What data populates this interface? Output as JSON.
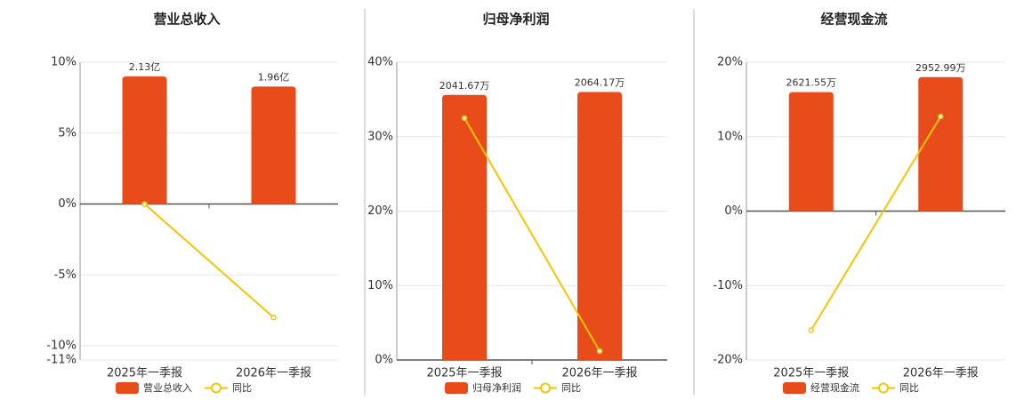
{
  "chart_data": [
    {
      "type": "bar",
      "title": "营业总收入",
      "categories": [
        "2025年一季报",
        "2026年一季报"
      ],
      "series": [
        {
          "name": "营业总收入",
          "type": "bar",
          "color": "#e84c1a",
          "values": [
            2.13,
            1.96
          ],
          "value_labels": [
            "2.13亿",
            "1.96亿"
          ]
        },
        {
          "name": "同比",
          "type": "line",
          "color": "#f5c400",
          "values": [
            0,
            -8
          ]
        }
      ],
      "ylim": [
        -11,
        10
      ],
      "yticks": [
        {
          "value": -11,
          "label": "-11%"
        },
        {
          "value": -10,
          "label": "-10%"
        },
        {
          "value": -5,
          "label": "-5%"
        },
        {
          "value": 0,
          "label": "0%"
        },
        {
          "value": 5,
          "label": "5%"
        },
        {
          "value": 10,
          "label": "10%"
        }
      ],
      "grid": true
    },
    {
      "type": "bar",
      "title": "归母净利润",
      "categories": [
        "2025年一季报",
        "2026年一季报"
      ],
      "series": [
        {
          "name": "归母净利润",
          "type": "bar",
          "color": "#e84c1a",
          "values": [
            2041.67,
            2064.17
          ],
          "value_labels": [
            "2041.67万",
            "2064.17万"
          ]
        },
        {
          "name": "同比",
          "type": "line",
          "color": "#f5c400",
          "values": [
            32.5,
            1.2
          ]
        }
      ],
      "ylim": [
        0,
        40
      ],
      "yticks": [
        {
          "value": 0,
          "label": "0%"
        },
        {
          "value": 10,
          "label": "10%"
        },
        {
          "value": 20,
          "label": "20%"
        },
        {
          "value": 30,
          "label": "30%"
        },
        {
          "value": 40,
          "label": "40%"
        }
      ],
      "grid": true
    },
    {
      "type": "bar",
      "title": "经营现金流",
      "categories": [
        "2025年一季报",
        "2026年一季报"
      ],
      "series": [
        {
          "name": "经营现金流",
          "type": "bar",
          "color": "#e84c1a",
          "values": [
            2621.55,
            2952.99
          ],
          "value_labels": [
            "2621.55万",
            "2952.99万"
          ]
        },
        {
          "name": "同比",
          "type": "line",
          "color": "#f5c400",
          "values": [
            -16,
            12.7
          ]
        }
      ],
      "ylim": [
        -20,
        20
      ],
      "yticks": [
        {
          "value": -20,
          "label": "-20%"
        },
        {
          "value": -10,
          "label": "-10%"
        },
        {
          "value": 0,
          "label": "0%"
        },
        {
          "value": 10,
          "label": "10%"
        },
        {
          "value": 20,
          "label": "20%"
        }
      ],
      "grid": true
    }
  ]
}
